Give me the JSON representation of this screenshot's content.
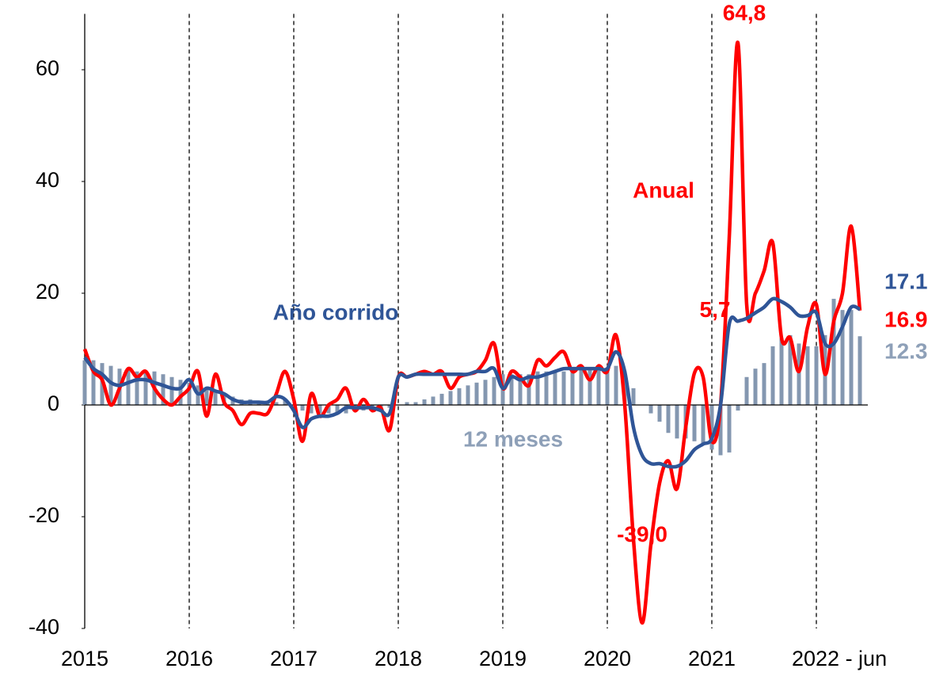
{
  "chart_data": {
    "type": "line-bar",
    "categories": [
      "2015",
      null,
      null,
      null,
      null,
      null,
      null,
      null,
      null,
      null,
      null,
      null,
      "2016",
      null,
      null,
      null,
      null,
      null,
      null,
      null,
      null,
      null,
      null,
      null,
      "2017",
      null,
      null,
      null,
      null,
      null,
      null,
      null,
      null,
      null,
      null,
      null,
      "2018",
      null,
      null,
      null,
      null,
      null,
      null,
      null,
      null,
      null,
      null,
      null,
      "2019",
      null,
      null,
      null,
      null,
      null,
      null,
      null,
      null,
      null,
      null,
      null,
      "2020",
      null,
      null,
      null,
      null,
      null,
      null,
      null,
      null,
      null,
      null,
      null,
      "2021",
      null,
      null,
      null,
      null,
      null,
      null,
      null,
      null,
      null,
      null,
      null,
      "2022 - jun",
      null,
      null,
      null,
      null,
      null
    ],
    "ylim": [
      -40,
      70
    ],
    "yticks": [
      -40,
      -20,
      0,
      20,
      40,
      60
    ],
    "year_grid": true,
    "series": [
      {
        "name": "12 meses",
        "kind": "bar",
        "color": "#8497b0",
        "values": [
          8,
          8,
          7.5,
          7,
          6.5,
          6.5,
          6,
          6,
          6,
          5.5,
          5,
          4.5,
          4,
          3.5,
          3,
          2.5,
          2,
          1.5,
          1,
          1,
          0.5,
          0.5,
          0.5,
          1,
          0,
          -1,
          -1.5,
          -1.5,
          -1.5,
          -1.5,
          -1.5,
          -1,
          -1,
          -1,
          -1,
          -0.5,
          0,
          0.5,
          0.5,
          1,
          1.5,
          2,
          2.5,
          3,
          3.5,
          4,
          4.5,
          5,
          5.5,
          5.5,
          5.5,
          5.5,
          6,
          6,
          6,
          6,
          6.5,
          6.5,
          6.5,
          6.5,
          6.5,
          7,
          6,
          3,
          0,
          -1.5,
          -3,
          -5,
          -6,
          -6,
          -6.5,
          -7,
          -8,
          -9,
          -8.5,
          -1,
          5,
          6.5,
          7.5,
          10.5,
          12,
          12.5,
          11,
          10.5,
          10.5,
          12.5,
          19,
          17,
          17,
          12.3
        ],
        "value_labels": [
          null,
          null,
          null,
          null,
          null,
          null,
          null,
          null,
          null,
          null,
          null,
          null,
          null,
          null,
          null,
          null,
          null,
          null,
          null,
          null,
          null,
          null,
          null,
          null,
          null,
          null,
          null,
          null,
          null,
          null,
          null,
          null,
          null,
          null,
          null,
          null,
          null,
          null,
          null,
          null,
          null,
          null,
          null,
          null,
          null,
          null,
          null,
          null,
          null,
          null,
          null,
          null,
          null,
          null,
          null,
          null,
          null,
          null,
          null,
          null,
          null,
          null,
          null,
          null,
          null,
          null,
          null,
          null,
          null,
          null,
          null,
          null,
          null,
          null,
          null,
          null,
          null,
          null,
          null,
          null,
          null,
          null,
          null,
          null,
          null,
          null,
          null,
          null,
          null,
          "12.3"
        ]
      },
      {
        "name": "Anual",
        "kind": "line",
        "color": "#ff0000",
        "values": [
          10,
          6,
          4.5,
          0,
          3,
          6.5,
          5,
          6,
          3,
          1,
          0,
          1.5,
          3,
          6,
          -2,
          5.5,
          0.5,
          -1,
          -3.5,
          -1.5,
          -1.5,
          -1.5,
          2,
          6,
          1,
          -6.5,
          2,
          -2,
          0,
          1,
          3,
          -1,
          1,
          -1,
          -0.5,
          -4.5,
          5,
          5,
          5.5,
          6,
          5.5,
          6,
          3,
          5,
          5.5,
          6,
          8,
          11,
          3,
          6,
          5,
          3.5,
          8,
          7,
          8.5,
          9.5,
          6,
          7,
          4.5,
          7,
          6,
          12.5,
          0,
          -24,
          -39,
          -25,
          -14,
          -10,
          -15,
          -4,
          5.7,
          5,
          -6.5,
          0,
          30,
          64.8,
          18,
          20,
          24,
          29,
          12,
          12,
          6,
          14,
          18,
          5.5,
          15,
          20,
          32,
          16.9
        ],
        "value_labels": [
          null,
          null,
          null,
          null,
          null,
          null,
          null,
          null,
          null,
          null,
          null,
          null,
          null,
          null,
          null,
          null,
          null,
          null,
          null,
          null,
          null,
          null,
          null,
          null,
          null,
          null,
          null,
          null,
          null,
          null,
          null,
          null,
          null,
          null,
          null,
          null,
          null,
          null,
          null,
          null,
          null,
          null,
          null,
          null,
          null,
          null,
          null,
          null,
          null,
          null,
          null,
          null,
          null,
          null,
          null,
          null,
          null,
          null,
          null,
          null,
          null,
          null,
          null,
          null,
          "-39,0",
          null,
          null,
          null,
          null,
          null,
          "5,7",
          null,
          null,
          null,
          null,
          "64,8",
          null,
          null,
          null,
          null,
          null,
          null,
          null,
          null,
          null,
          null,
          null,
          null,
          null,
          "16.9"
        ]
      },
      {
        "name": "Año corrido",
        "kind": "line",
        "color": "#2f5597",
        "values": [
          8.5,
          6.5,
          5.5,
          4,
          3.5,
          4,
          4.5,
          4.5,
          4,
          3.5,
          3,
          3,
          4.5,
          2,
          3,
          2.5,
          2,
          1,
          0.5,
          0.5,
          0.5,
          0.5,
          1.5,
          1,
          -1,
          -4,
          -2.5,
          -2,
          -2,
          -1.5,
          -0.5,
          -0.5,
          -0.5,
          -0.5,
          -1,
          -1.5,
          5,
          5,
          5.5,
          5.5,
          5.5,
          5.5,
          5.5,
          5.5,
          5.5,
          6,
          6,
          6.5,
          3,
          5,
          4.5,
          5,
          5,
          5.5,
          6,
          6.5,
          6.5,
          6.5,
          6.5,
          6.5,
          6.5,
          9.5,
          6,
          -4,
          -9,
          -10.5,
          -10.5,
          -11,
          -11,
          -10,
          -8,
          -7,
          -6,
          0,
          14.5,
          15,
          15.5,
          16.5,
          17.5,
          19,
          18.5,
          17.5,
          16,
          16,
          16.5,
          11,
          11,
          14,
          17.5,
          17.1
        ],
        "value_labels": [
          null,
          null,
          null,
          null,
          null,
          null,
          null,
          null,
          null,
          null,
          null,
          null,
          null,
          null,
          null,
          null,
          null,
          null,
          null,
          null,
          null,
          null,
          null,
          null,
          null,
          null,
          null,
          null,
          null,
          null,
          null,
          null,
          null,
          null,
          null,
          null,
          null,
          null,
          null,
          null,
          null,
          null,
          null,
          null,
          null,
          null,
          null,
          null,
          null,
          null,
          null,
          null,
          null,
          null,
          null,
          null,
          null,
          null,
          null,
          null,
          null,
          null,
          null,
          null,
          null,
          null,
          null,
          null,
          null,
          null,
          null,
          null,
          null,
          null,
          null,
          null,
          null,
          null,
          null,
          null,
          null,
          null,
          null,
          null,
          null,
          null,
          null,
          null,
          null,
          "17.1"
        ]
      }
    ]
  }
}
